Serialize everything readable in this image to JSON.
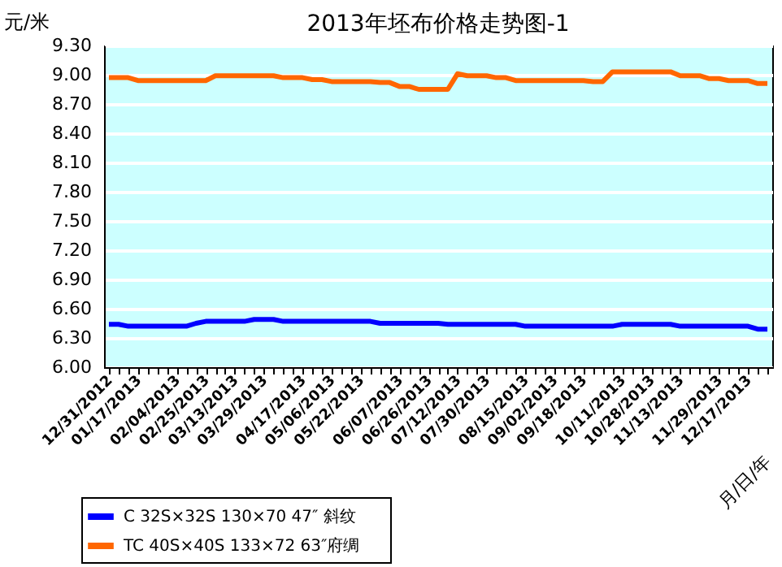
{
  "chart_data": {
    "type": "line",
    "title": "2013年坯布价格走势图-1",
    "xlabel": "月/日/年",
    "ylabel": "元/米",
    "categories": [
      "12/31/2012",
      null,
      null,
      "01/17/2013",
      null,
      null,
      null,
      "02/04/2013",
      null,
      null,
      "02/25/2013",
      null,
      null,
      "03/13/2013",
      null,
      null,
      "03/29/2013",
      null,
      null,
      null,
      "04/17/2013",
      null,
      null,
      "05/06/2013",
      null,
      null,
      "05/22/2013",
      null,
      null,
      null,
      "06/07/2013",
      null,
      null,
      "06/26/2013",
      null,
      null,
      "07/12/2013",
      null,
      null,
      "07/30/2013",
      null,
      null,
      null,
      "08/15/2013",
      null,
      null,
      "09/02/2013",
      null,
      null,
      "09/18/2013",
      null,
      null,
      null,
      "10/11/2013",
      null,
      null,
      "10/28/2013",
      null,
      null,
      "11/13/2013",
      null,
      null,
      null,
      "11/29/2013",
      null,
      null,
      "12/17/2013",
      null,
      null
    ],
    "series": [
      {
        "name": "C  32S×32S   130×70   47″ 斜纹",
        "color": "#0000ff",
        "values": [
          6.44,
          6.44,
          6.42,
          6.42,
          6.42,
          6.42,
          6.42,
          6.42,
          6.42,
          6.45,
          6.47,
          6.47,
          6.47,
          6.47,
          6.47,
          6.49,
          6.49,
          6.49,
          6.47,
          6.47,
          6.47,
          6.47,
          6.47,
          6.47,
          6.47,
          6.47,
          6.47,
          6.47,
          6.45,
          6.45,
          6.45,
          6.45,
          6.45,
          6.45,
          6.45,
          6.44,
          6.44,
          6.44,
          6.44,
          6.44,
          6.44,
          6.44,
          6.44,
          6.42,
          6.42,
          6.42,
          6.42,
          6.42,
          6.42,
          6.42,
          6.42,
          6.42,
          6.42,
          6.44,
          6.44,
          6.44,
          6.44,
          6.44,
          6.44,
          6.42,
          6.42,
          6.42,
          6.42,
          6.42,
          6.42,
          6.42,
          6.42,
          6.39,
          6.39
        ]
      },
      {
        "name": "TC  40S×40S   133×72   63″府绸",
        "color": "#ff6600",
        "values": [
          8.97,
          8.97,
          8.97,
          8.94,
          8.94,
          8.94,
          8.94,
          8.94,
          8.94,
          8.94,
          8.94,
          8.99,
          8.99,
          8.99,
          8.99,
          8.99,
          8.99,
          8.99,
          8.97,
          8.97,
          8.97,
          8.95,
          8.95,
          8.93,
          8.93,
          8.93,
          8.93,
          8.93,
          8.92,
          8.92,
          8.88,
          8.88,
          8.85,
          8.85,
          8.85,
          8.85,
          9.01,
          8.99,
          8.99,
          8.99,
          8.97,
          8.97,
          8.94,
          8.94,
          8.94,
          8.94,
          8.94,
          8.94,
          8.94,
          8.94,
          8.93,
          8.93,
          9.03,
          9.03,
          9.03,
          9.03,
          9.03,
          9.03,
          9.03,
          8.99,
          8.99,
          8.99,
          8.96,
          8.96,
          8.94,
          8.94,
          8.94,
          8.91,
          8.91
        ]
      }
    ],
    "ylim": [
      6.0,
      9.3
    ],
    "yticks": [
      {
        "value": 6.0,
        "label": "6.00"
      },
      {
        "value": 6.3,
        "label": "6.30"
      },
      {
        "value": 6.6,
        "label": "6.60"
      },
      {
        "value": 6.9,
        "label": "6.90"
      },
      {
        "value": 7.2,
        "label": "7.20"
      },
      {
        "value": 7.5,
        "label": "7.50"
      },
      {
        "value": 7.8,
        "label": "7.80"
      },
      {
        "value": 8.1,
        "label": "8.10"
      },
      {
        "value": 8.4,
        "label": "8.40"
      },
      {
        "value": 8.7,
        "label": "8.70"
      },
      {
        "value": 9.0,
        "label": "9.00"
      },
      {
        "value": 9.3,
        "label": "9.30"
      }
    ],
    "grid": "y",
    "legend": "bottom",
    "marker": "none",
    "line_style": "solid"
  }
}
